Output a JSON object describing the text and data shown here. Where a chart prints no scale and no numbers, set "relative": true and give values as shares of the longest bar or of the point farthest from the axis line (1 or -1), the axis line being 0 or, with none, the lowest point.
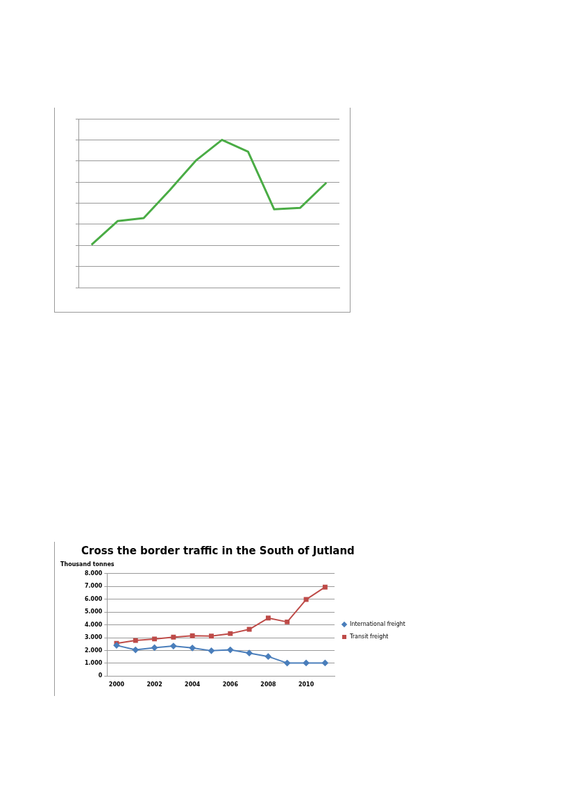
{
  "chart_data": [
    {
      "type": "line",
      "relative": true,
      "categories": [
        null,
        null,
        null,
        null,
        null,
        null,
        null,
        null,
        null,
        null
      ],
      "grid": "y",
      "tick_labels": false,
      "marker": "none",
      "series": [
        {
          "color": "#4aac45",
          "values": [
            0.29,
            0.45,
            0.47,
            0.66,
            0.86,
            1,
            0.92,
            0.53,
            0.54,
            0.71
          ]
        }
      ]
    },
    {
      "type": "line",
      "title": "Cross the border traffic in the South of Jutland",
      "ylabel": "Thousand tonnes",
      "categories": [
        "2000",
        null,
        "2002",
        null,
        "2004",
        null,
        "2006",
        null,
        "2008",
        null,
        "2010",
        null
      ],
      "ylim": [
        0,
        8000
      ],
      "yticks": [
        0,
        {
          "value": 1000,
          "label": "1.000"
        },
        {
          "value": 2000,
          "label": "2.000"
        },
        {
          "value": 3000,
          "label": "3.000"
        },
        {
          "value": 4000,
          "label": "4.000"
        },
        {
          "value": 5000,
          "label": "5.000"
        },
        {
          "value": 6000,
          "label": "6.000"
        },
        {
          "value": 7000,
          "label": "7.000"
        },
        {
          "value": 8000,
          "label": "8.000"
        }
      ],
      "grid": "y",
      "legend": "right",
      "series": [
        {
          "name": "International freight",
          "color": "#4a7ebb",
          "marker": "diamond",
          "values": [
            2400,
            2050,
            2220,
            2350,
            2200,
            1980,
            2050,
            1800,
            1530,
            1020,
            1030,
            1030
          ]
        },
        {
          "name": "Transit freight",
          "color": "#be4b48",
          "marker": "square",
          "values": [
            2560,
            2780,
            2900,
            3040,
            3150,
            3130,
            3320,
            3650,
            4530,
            4230,
            5980,
            6950
          ]
        }
      ]
    }
  ]
}
